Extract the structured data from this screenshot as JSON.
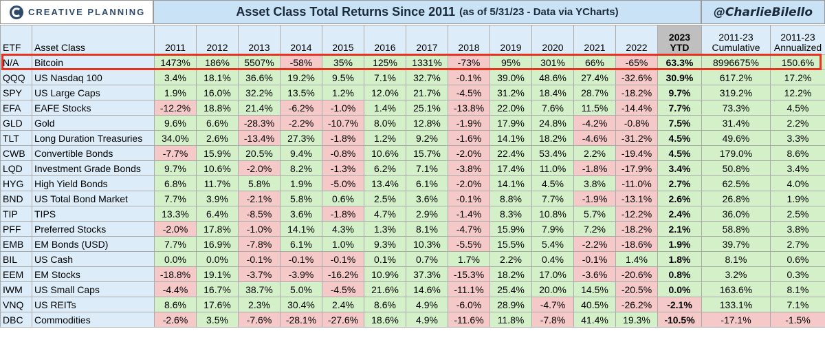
{
  "header": {
    "logo": "CREATIVE PLANNING",
    "title": "Asset Class Total Returns Since 2011",
    "subtitle": "(as of 5/31/23 - Data via YCharts)",
    "handle": "@CharlieBilello"
  },
  "table": {
    "columns": [
      "ETF",
      "Asset Class",
      "2011",
      "2012",
      "2013",
      "2014",
      "2015",
      "2016",
      "2017",
      "2018",
      "2019",
      "2020",
      "2021",
      "2022",
      "2023 YTD",
      "2011-23 Cumulative",
      "2011-23 Annualized"
    ],
    "rows": [
      [
        "N/A",
        "Bitcoin",
        "1473%",
        "186%",
        "5507%",
        "-58%",
        "35%",
        "125%",
        "1331%",
        "-73%",
        "95%",
        "301%",
        "66%",
        "-65%",
        "63.3%",
        "8996675%",
        "150.6%"
      ],
      [
        "QQQ",
        "US Nasdaq 100",
        "3.4%",
        "18.1%",
        "36.6%",
        "19.2%",
        "9.5%",
        "7.1%",
        "32.7%",
        "-0.1%",
        "39.0%",
        "48.6%",
        "27.4%",
        "-32.6%",
        "30.9%",
        "617.2%",
        "17.2%"
      ],
      [
        "SPY",
        "US Large Caps",
        "1.9%",
        "16.0%",
        "32.2%",
        "13.5%",
        "1.2%",
        "12.0%",
        "21.7%",
        "-4.5%",
        "31.2%",
        "18.4%",
        "28.7%",
        "-18.2%",
        "9.7%",
        "319.2%",
        "12.2%"
      ],
      [
        "EFA",
        "EAFE Stocks",
        "-12.2%",
        "18.8%",
        "21.4%",
        "-6.2%",
        "-1.0%",
        "1.4%",
        "25.1%",
        "-13.8%",
        "22.0%",
        "7.6%",
        "11.5%",
        "-14.4%",
        "7.7%",
        "73.3%",
        "4.5%"
      ],
      [
        "GLD",
        "Gold",
        "9.6%",
        "6.6%",
        "-28.3%",
        "-2.2%",
        "-10.7%",
        "8.0%",
        "12.8%",
        "-1.9%",
        "17.9%",
        "24.8%",
        "-4.2%",
        "-0.8%",
        "7.5%",
        "31.4%",
        "2.2%"
      ],
      [
        "TLT",
        "Long Duration Treasuries",
        "34.0%",
        "2.6%",
        "-13.4%",
        "27.3%",
        "-1.8%",
        "1.2%",
        "9.2%",
        "-1.6%",
        "14.1%",
        "18.2%",
        "-4.6%",
        "-31.2%",
        "4.5%",
        "49.6%",
        "3.3%"
      ],
      [
        "CWB",
        "Convertible Bonds",
        "-7.7%",
        "15.9%",
        "20.5%",
        "9.4%",
        "-0.8%",
        "10.6%",
        "15.7%",
        "-2.0%",
        "22.4%",
        "53.4%",
        "2.2%",
        "-19.4%",
        "4.5%",
        "179.0%",
        "8.6%"
      ],
      [
        "LQD",
        "Investment Grade Bonds",
        "9.7%",
        "10.6%",
        "-2.0%",
        "8.2%",
        "-1.3%",
        "6.2%",
        "7.1%",
        "-3.8%",
        "17.4%",
        "11.0%",
        "-1.8%",
        "-17.9%",
        "3.4%",
        "50.8%",
        "3.4%"
      ],
      [
        "HYG",
        "High Yield Bonds",
        "6.8%",
        "11.7%",
        "5.8%",
        "1.9%",
        "-5.0%",
        "13.4%",
        "6.1%",
        "-2.0%",
        "14.1%",
        "4.5%",
        "3.8%",
        "-11.0%",
        "2.7%",
        "62.5%",
        "4.0%"
      ],
      [
        "BND",
        "US Total Bond Market",
        "7.7%",
        "3.9%",
        "-2.1%",
        "5.8%",
        "0.6%",
        "2.5%",
        "3.6%",
        "-0.1%",
        "8.8%",
        "7.7%",
        "-1.9%",
        "-13.1%",
        "2.6%",
        "26.8%",
        "1.9%"
      ],
      [
        "TIP",
        "TIPS",
        "13.3%",
        "6.4%",
        "-8.5%",
        "3.6%",
        "-1.8%",
        "4.7%",
        "2.9%",
        "-1.4%",
        "8.3%",
        "10.8%",
        "5.7%",
        "-12.2%",
        "2.4%",
        "36.0%",
        "2.5%"
      ],
      [
        "PFF",
        "Preferred Stocks",
        "-2.0%",
        "17.8%",
        "-1.0%",
        "14.1%",
        "4.3%",
        "1.3%",
        "8.1%",
        "-4.7%",
        "15.9%",
        "7.9%",
        "7.2%",
        "-18.2%",
        "2.1%",
        "58.8%",
        "3.8%"
      ],
      [
        "EMB",
        "EM Bonds (USD)",
        "7.7%",
        "16.9%",
        "-7.8%",
        "6.1%",
        "1.0%",
        "9.3%",
        "10.3%",
        "-5.5%",
        "15.5%",
        "5.4%",
        "-2.2%",
        "-18.6%",
        "1.9%",
        "39.7%",
        "2.7%"
      ],
      [
        "BIL",
        "US Cash",
        "0.0%",
        "0.0%",
        "-0.1%",
        "-0.1%",
        "-0.1%",
        "0.1%",
        "0.7%",
        "1.7%",
        "2.2%",
        "0.4%",
        "-0.1%",
        "1.4%",
        "1.8%",
        "8.1%",
        "0.6%"
      ],
      [
        "EEM",
        "EM Stocks",
        "-18.8%",
        "19.1%",
        "-3.7%",
        "-3.9%",
        "-16.2%",
        "10.9%",
        "37.3%",
        "-15.3%",
        "18.2%",
        "17.0%",
        "-3.6%",
        "-20.6%",
        "0.8%",
        "3.2%",
        "0.3%"
      ],
      [
        "IWM",
        "US Small Caps",
        "-4.4%",
        "16.7%",
        "38.7%",
        "5.0%",
        "-4.5%",
        "21.6%",
        "14.6%",
        "-11.1%",
        "25.4%",
        "20.0%",
        "14.5%",
        "-20.5%",
        "0.0%",
        "163.6%",
        "8.1%"
      ],
      [
        "VNQ",
        "US REITs",
        "8.6%",
        "17.6%",
        "2.3%",
        "30.4%",
        "2.4%",
        "8.6%",
        "4.9%",
        "-6.0%",
        "28.9%",
        "-4.7%",
        "40.5%",
        "-26.2%",
        "-2.1%",
        "133.1%",
        "7.1%"
      ],
      [
        "DBC",
        "Commodities",
        "-2.6%",
        "3.5%",
        "-7.6%",
        "-28.1%",
        "-27.6%",
        "18.6%",
        "4.9%",
        "-11.6%",
        "11.8%",
        "-7.8%",
        "41.4%",
        "19.3%",
        "-10.5%",
        "-17.1%",
        "-1.5%"
      ]
    ]
  }
}
